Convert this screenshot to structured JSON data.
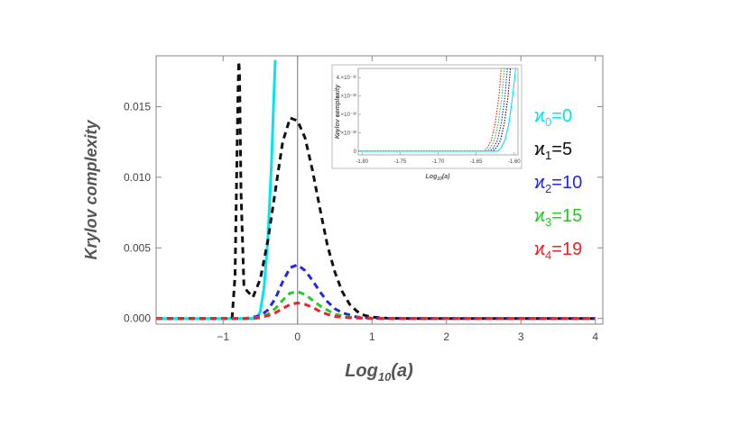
{
  "chart_data": [
    {
      "type": "line",
      "xlabel": "Log10(a)",
      "xlabel_main": "Log",
      "xlabel_sub": "10",
      "xlabel_arg": "(a)",
      "ylabel": "Krylov complexity",
      "xlim": [
        -1.9,
        4.1
      ],
      "ylim": [
        -0.0004,
        0.0186
      ],
      "xticks": [
        -1,
        0,
        1,
        2,
        3,
        4
      ],
      "xtick_labels": [
        "−1",
        "0",
        "1",
        "2",
        "3",
        "4"
      ],
      "yticks": [
        0.0,
        0.005,
        0.01,
        0.015
      ],
      "ytick_labels": [
        "0.000",
        "0.005",
        "0.010",
        "0.015"
      ],
      "vertical_line_x": 0,
      "legend_position": "right",
      "series": [
        {
          "name": "ϰ0=0",
          "label_base": "ϰ",
          "label_sub": "0",
          "label_rest": "=0",
          "color": "#00e5ee",
          "style": "solid",
          "x": [
            -1.9,
            -0.7,
            -0.55,
            -0.5,
            -0.45,
            -0.4,
            -0.35,
            -0.32,
            -0.3
          ],
          "y": [
            0.0,
            0.0,
            0.0,
            0.0005,
            0.0022,
            0.0055,
            0.011,
            0.0155,
            0.0183
          ]
        },
        {
          "name": "ϰ1=5",
          "label_base": "ϰ",
          "label_sub": "1",
          "label_rest": "=5",
          "color": "#111111",
          "style": "dashed",
          "x": [
            -1.9,
            -1.0,
            -0.88,
            -0.84,
            -0.82,
            -0.8,
            -0.79,
            -0.78,
            -0.76,
            -0.72,
            -0.6,
            -0.5,
            -0.4,
            -0.3,
            -0.2,
            -0.1,
            0.0,
            0.1,
            0.2,
            0.3,
            0.4,
            0.5,
            0.6,
            0.7,
            0.8,
            0.9,
            1.0,
            1.2,
            1.5,
            2.0,
            4.0
          ],
          "y": [
            0.0,
            0.0,
            0.0,
            0.003,
            0.0095,
            0.016,
            0.0182,
            0.0175,
            0.009,
            0.0022,
            0.0015,
            0.0028,
            0.0055,
            0.009,
            0.0125,
            0.0142,
            0.014,
            0.0128,
            0.0105,
            0.0078,
            0.0052,
            0.0033,
            0.0019,
            0.001,
            0.0005,
            0.00022,
            0.0001,
            2e-05,
            0.0,
            0.0,
            0.0
          ]
        },
        {
          "name": "ϰ2=10",
          "label_base": "ϰ",
          "label_sub": "2",
          "label_rest": "=10",
          "color": "#2424ee",
          "style": "dashed",
          "x": [
            -1.9,
            -0.7,
            -0.5,
            -0.4,
            -0.3,
            -0.2,
            -0.1,
            0.0,
            0.1,
            0.2,
            0.3,
            0.4,
            0.5,
            0.6,
            0.8,
            1.0,
            1.3,
            4.0
          ],
          "y": [
            0.0,
            0.0,
            0.0002,
            0.0006,
            0.0014,
            0.0026,
            0.0036,
            0.0038,
            0.0034,
            0.0027,
            0.0019,
            0.0012,
            0.0007,
            0.0004,
            0.0001,
            3e-05,
            0.0,
            0.0
          ]
        },
        {
          "name": "ϰ3=15",
          "label_base": "ϰ",
          "label_sub": "3",
          "label_rest": "=15",
          "color": "#22cc22",
          "style": "dashed",
          "x": [
            -1.9,
            -0.7,
            -0.5,
            -0.4,
            -0.3,
            -0.2,
            -0.1,
            0.0,
            0.1,
            0.2,
            0.3,
            0.4,
            0.5,
            0.7,
            1.0,
            4.0
          ],
          "y": [
            0.0,
            0.0,
            0.0001,
            0.0003,
            0.0007,
            0.0013,
            0.0018,
            0.0019,
            0.0017,
            0.0013,
            0.0009,
            0.0006,
            0.0003,
            0.0001,
            0.0,
            0.0
          ]
        },
        {
          "name": "ϰ4=19",
          "label_base": "ϰ",
          "label_sub": "4",
          "label_rest": "=19",
          "color": "#ee2222",
          "style": "dashed",
          "x": [
            -1.9,
            -0.7,
            -0.5,
            -0.4,
            -0.3,
            -0.2,
            -0.1,
            0.0,
            0.1,
            0.2,
            0.3,
            0.4,
            0.5,
            0.7,
            1.0,
            4.0
          ],
          "y": [
            0.0,
            0.0,
            5e-05,
            0.0002,
            0.0004,
            0.0007,
            0.001,
            0.0011,
            0.001,
            0.0008,
            0.0005,
            0.0003,
            0.00015,
            5e-05,
            0.0,
            0.0
          ]
        }
      ]
    },
    {
      "type": "line",
      "subplot": "inset",
      "xlabel": "Log10(a)",
      "xlabel_main": "Log",
      "xlabel_sub": "10",
      "xlabel_arg": "(a)",
      "ylabel": "Krylov complexity",
      "xlim": [
        -1.805,
        -1.595
      ],
      "ylim": [
        -2e-33,
        4.5e-32
      ],
      "xticks": [
        -1.8,
        -1.75,
        -1.7,
        -1.65,
        -1.6
      ],
      "xtick_labels": [
        "-1.80",
        "-1.75",
        "-1.70",
        "-1.65",
        "-1.60"
      ],
      "yticks": [
        0,
        1e-32,
        2e-32,
        3e-32,
        4e-32
      ],
      "ytick_labels": [
        "0",
        "1.×10⁻³²",
        "2.×10⁻³²",
        "3.×10⁻³²",
        "4.×10⁻³²"
      ],
      "series": [
        {
          "color": "#ee2222",
          "style": "dotted",
          "x": [
            -1.805,
            -1.64,
            -1.635,
            -1.63,
            -1.625,
            -1.62,
            -1.617
          ],
          "y": [
            0,
            0,
            2e-33,
            6e-33,
            1.5e-32,
            3e-32,
            4.5e-32
          ]
        },
        {
          "color": "#22cc22",
          "style": "dotted",
          "x": [
            -1.805,
            -1.636,
            -1.631,
            -1.626,
            -1.621,
            -1.616,
            -1.613
          ],
          "y": [
            0,
            0,
            2e-33,
            6e-33,
            1.5e-32,
            3e-32,
            4.5e-32
          ]
        },
        {
          "color": "#2424ee",
          "style": "dotted",
          "x": [
            -1.805,
            -1.632,
            -1.627,
            -1.622,
            -1.617,
            -1.612,
            -1.609
          ],
          "y": [
            0,
            0,
            2e-33,
            6e-33,
            1.5e-32,
            3e-32,
            4.5e-32
          ]
        },
        {
          "color": "#111111",
          "style": "dotted",
          "x": [
            -1.805,
            -1.628,
            -1.623,
            -1.618,
            -1.613,
            -1.608,
            -1.605
          ],
          "y": [
            0,
            0,
            2e-33,
            6e-33,
            1.5e-32,
            3e-32,
            4.5e-32
          ]
        },
        {
          "color": "#00e5ee",
          "style": "solid",
          "x": [
            -1.805,
            -1.622,
            -1.617,
            -1.612,
            -1.607,
            -1.602,
            -1.598
          ],
          "y": [
            0,
            0,
            2e-33,
            6e-33,
            1.5e-32,
            3e-32,
            4.5e-32
          ]
        }
      ]
    }
  ]
}
